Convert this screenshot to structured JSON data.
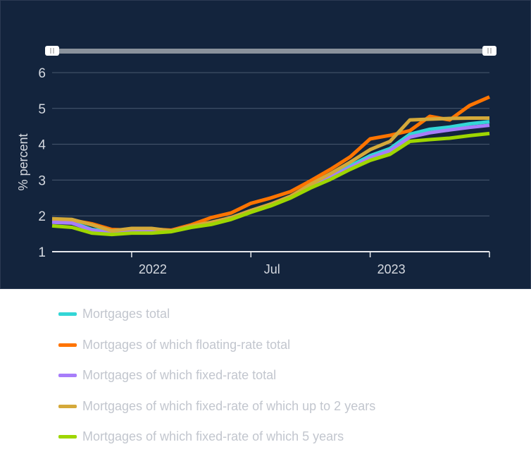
{
  "chart_data": {
    "type": "line",
    "ylabel": "% percent",
    "ylim": [
      1,
      6
    ],
    "yticks": [
      1,
      2,
      3,
      4,
      5,
      6
    ],
    "x": [
      "2021-09",
      "2021-10",
      "2021-11",
      "2021-12",
      "2022-01",
      "2022-02",
      "2022-03",
      "2022-04",
      "2022-05",
      "2022-06",
      "2022-07",
      "2022-08",
      "2022-09",
      "2022-10",
      "2022-11",
      "2022-12",
      "2023-01",
      "2023-02",
      "2023-03",
      "2023-04",
      "2023-05",
      "2023-06",
      "2023-07"
    ],
    "xticks": [
      {
        "at": "2022-01",
        "label": "2022"
      },
      {
        "at": "2022-07",
        "label": "Jul"
      },
      {
        "at": "2023-01",
        "label": "2023"
      }
    ],
    "grid": true,
    "legend_placement": "bottom",
    "background": "#13243d",
    "series": [
      {
        "name": "Mortgages total",
        "color": "#33d6d6",
        "values": [
          1.85,
          1.82,
          1.62,
          1.55,
          1.58,
          1.58,
          1.6,
          1.72,
          1.8,
          1.95,
          2.15,
          2.32,
          2.55,
          2.85,
          3.12,
          3.4,
          3.68,
          3.88,
          4.28,
          4.42,
          4.48,
          4.57,
          4.63
        ]
      },
      {
        "name": "Mortgages of which floating-rate total",
        "color": "#ff7400",
        "values": [
          1.9,
          1.88,
          1.78,
          1.62,
          1.6,
          1.63,
          1.6,
          1.75,
          1.95,
          2.08,
          2.35,
          2.5,
          2.68,
          2.98,
          3.3,
          3.65,
          4.15,
          4.25,
          4.38,
          4.78,
          4.68,
          5.08,
          5.32
        ]
      },
      {
        "name": "Mortgages of which fixed-rate total",
        "color": "#a77dfa",
        "values": [
          1.82,
          1.8,
          1.6,
          1.52,
          1.55,
          1.56,
          1.58,
          1.7,
          1.78,
          1.93,
          2.13,
          2.3,
          2.52,
          2.82,
          3.08,
          3.35,
          3.62,
          3.82,
          4.2,
          4.32,
          4.4,
          4.47,
          4.53
        ]
      },
      {
        "name": "Mortgages of which fixed-rate of which up to 2 years",
        "color": "#d4a93a",
        "values": [
          1.92,
          1.9,
          1.75,
          1.58,
          1.65,
          1.65,
          1.58,
          1.72,
          1.82,
          1.95,
          2.15,
          2.33,
          2.55,
          2.88,
          3.18,
          3.5,
          3.85,
          4.08,
          4.68,
          4.7,
          4.72,
          4.73,
          4.73
        ]
      },
      {
        "name": "Mortgages of which fixed-rate of which 5 years",
        "color": "#9ed600",
        "values": [
          1.72,
          1.68,
          1.52,
          1.48,
          1.52,
          1.52,
          1.56,
          1.68,
          1.76,
          1.9,
          2.1,
          2.28,
          2.5,
          2.78,
          3.02,
          3.3,
          3.55,
          3.72,
          4.08,
          4.13,
          4.17,
          4.24,
          4.3
        ]
      }
    ],
    "draw_order": [
      0,
      1,
      2,
      3,
      4
    ]
  },
  "range_selector": {
    "start": "2021-09",
    "end": "2023-07"
  }
}
